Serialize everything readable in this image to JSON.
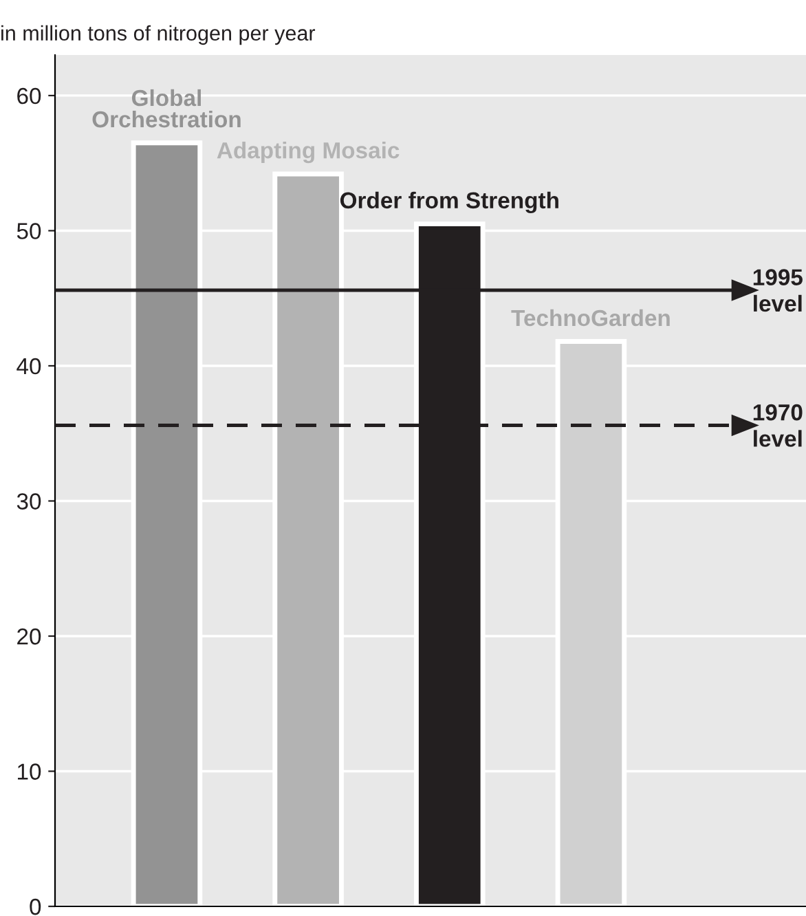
{
  "chart_data": {
    "type": "bar",
    "ylabel": "in million tons of nitrogen per year",
    "categories": [
      "Global\nOrchestration",
      "Adapting Mosaic",
      "Order from Strength",
      "TechnoGarden"
    ],
    "values": [
      56.5,
      54.2,
      50.5,
      41.8
    ],
    "colors": [
      "#939393",
      "#b3b3b3",
      "#231f20",
      "#d0d0d0"
    ],
    "ylim": [
      0,
      63
    ],
    "yticks": [
      0,
      10,
      20,
      30,
      40,
      50,
      60
    ],
    "grid": "y",
    "ref_lines": [
      {
        "axis": "y",
        "value": 45.6,
        "label": "1995\nlevel",
        "color": "#231f20",
        "line_style": "solid"
      },
      {
        "axis": "y",
        "value": 35.6,
        "label": "1970\nlevel",
        "color": "#231f20",
        "line_style": "dashed"
      }
    ]
  }
}
